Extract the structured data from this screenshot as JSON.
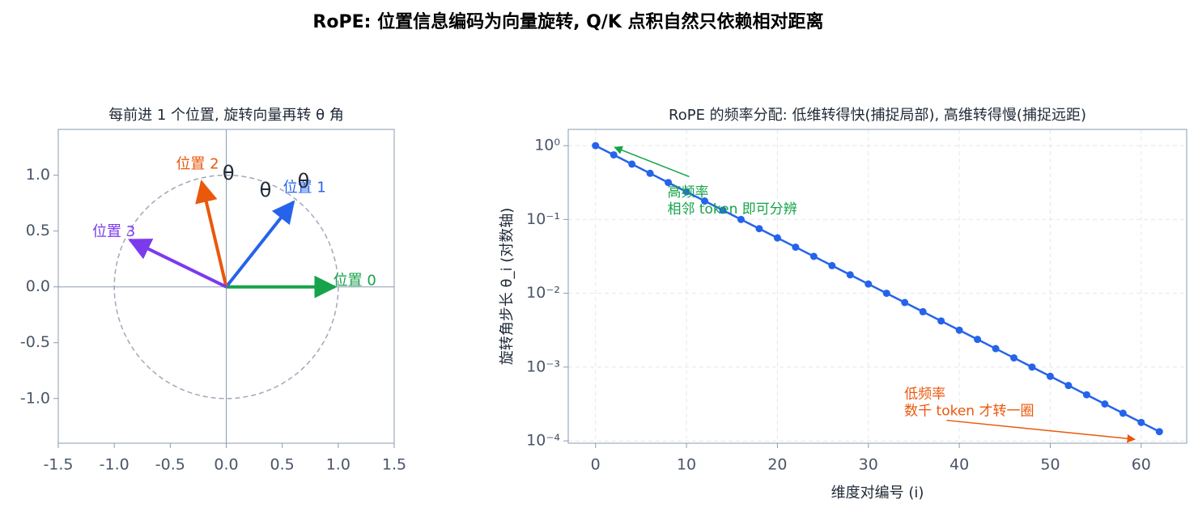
{
  "title": "RoPE: 位置信息编码为向量旋转, Q/K 点积自然只依赖相对距离",
  "chart_data": [
    {
      "type": "vector",
      "title": "每前进 1 个位置, 旋转向量再转 θ 角",
      "series": [
        {
          "name": "位置 0",
          "color": "#16a34a",
          "x": 0.97,
          "y": 0
        },
        {
          "name": "位置 1",
          "color": "#2563eb",
          "x": 0.6,
          "y": 0.76
        },
        {
          "name": "位置 2",
          "color": "#ea580c",
          "x": -0.22,
          "y": 0.94
        },
        {
          "name": "位置 3",
          "color": "#7c3aed",
          "x": -0.86,
          "y": 0.42
        }
      ],
      "circle_radius": 1,
      "angle_labels": [
        {
          "text": "θ",
          "x": 0.02,
          "y": 1.01
        },
        {
          "text": "θ",
          "x": 0.35,
          "y": 0.86
        },
        {
          "text": "θ",
          "x": 0.69,
          "y": 0.94
        }
      ],
      "xlim": [
        -1.5,
        1.5
      ],
      "xticks": [
        -1.5,
        {
          "value": -1,
          "label": "-1.0"
        },
        -0.5,
        {
          "value": 0,
          "label": "0.0"
        },
        0.5,
        {
          "value": 1,
          "label": "1.0"
        },
        1.5
      ],
      "ylim": [
        -1.4,
        1.41
      ],
      "yticks": [
        {
          "value": -1,
          "label": "-1.0"
        },
        -0.5,
        {
          "value": 0,
          "label": "0.0"
        },
        0.5,
        {
          "value": 1,
          "label": "1.0"
        }
      ],
      "grid": false
    },
    {
      "type": "line",
      "title": "RoPE 的频率分配: 低维转得快(捕捉局部), 高维转得慢(捕捉远距)",
      "xlabel": "维度对编号 (i)",
      "ylabel": "旋转角步长 θ_i (对数轴)",
      "x": [
        0,
        2,
        4,
        6,
        8,
        10,
        12,
        14,
        16,
        18,
        20,
        22,
        24,
        26,
        28,
        30,
        32,
        34,
        36,
        38,
        40,
        42,
        44,
        46,
        48,
        50,
        52,
        54,
        56,
        58,
        60,
        62
      ],
      "series": [
        {
          "color": "#2563eb",
          "values": [
            1,
            0.7499,
            0.5623,
            0.4217,
            0.3162,
            0.2371,
            0.1778,
            0.1334,
            0.1,
            0.07499,
            0.05623,
            0.04217,
            0.03162,
            0.02371,
            0.01778,
            0.01334,
            0.01,
            0.007499,
            0.005623,
            0.004217,
            0.003162,
            0.002371,
            0.001778,
            0.001334,
            0.001,
            0.0007499,
            0.0005623,
            0.0004217,
            0.0003162,
            0.0002371,
            0.0001778,
            0.0001334
          ]
        }
      ],
      "xlim": [
        -3,
        65
      ],
      "xticks": [
        0,
        10,
        20,
        30,
        40,
        50,
        60
      ],
      "yscale": "log",
      "ylim": [
        9.3e-05,
        1.66
      ],
      "yticks": [
        {
          "value": 1,
          "label": "10⁰"
        },
        {
          "value": 0.1,
          "label": "10⁻¹"
        },
        {
          "value": 0.01,
          "label": "10⁻²"
        },
        {
          "value": 0.001,
          "label": "10⁻³"
        },
        {
          "value": 0.0001,
          "label": "10⁻⁴"
        }
      ],
      "grid": true,
      "annotations": [
        {
          "lines": [
            "高频率",
            "相邻 token 即可分辨"
          ],
          "color": "#16a34a",
          "xytext": [
            7.9,
            0.3
          ],
          "arrow_from": [
            10.3,
            0.38
          ],
          "xy": [
            2.1,
            0.95
          ]
        },
        {
          "lines": [
            "低频率",
            "数千 token 才转一圈"
          ],
          "color": "#ea580c",
          "xytext": [
            33.95,
            0.00055
          ],
          "arrow_from": [
            38.6,
            0.00019
          ],
          "xy": [
            59.3,
            0.000105
          ]
        }
      ]
    }
  ]
}
